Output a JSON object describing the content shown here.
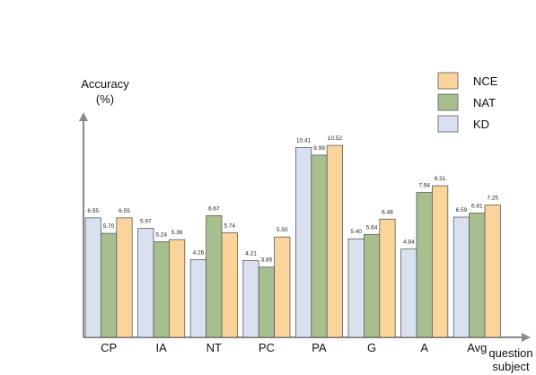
{
  "chart_data": {
    "type": "bar",
    "ylabel_line1": "Accuracy",
    "ylabel_line2": "(%)",
    "xlabel_line1": "question",
    "xlabel_line2": "subject",
    "categories": [
      "CP",
      "IA",
      "NT",
      "PC",
      "PA",
      "G",
      "A",
      "Avg"
    ],
    "series": [
      {
        "name": "KD",
        "color": "#d9e1f0",
        "values": [
          6.55,
          5.97,
          4.26,
          4.21,
          10.41,
          5.4,
          4.84,
          6.59
        ]
      },
      {
        "name": "NAT",
        "color": "#a7bf8f",
        "values": [
          5.7,
          5.24,
          6.67,
          3.85,
          9.99,
          5.64,
          7.94,
          6.81
        ]
      },
      {
        "name": "NCE",
        "color": "#fbd49b",
        "values": [
          6.55,
          5.36,
          5.74,
          5.5,
          10.52,
          6.48,
          8.31,
          7.25
        ]
      }
    ],
    "value_labels": [
      [
        "6.55",
        "5.97",
        "4.26",
        "4.21",
        "10.41",
        "5.40",
        "4.84",
        "6.59"
      ],
      [
        "5.70",
        "5.24",
        "6.67",
        "3.85",
        "9.99",
        "5.64",
        "7.94",
        "6.81"
      ],
      [
        "6.55",
        "5.36",
        "5.74",
        "5.50",
        "10.52",
        "6.48",
        "8.31",
        "7.25"
      ]
    ],
    "legend_order": [
      "NCE",
      "NAT",
      "KD"
    ],
    "legend_position": "top-right",
    "ylim": [
      0,
      12
    ],
    "grid": false
  }
}
